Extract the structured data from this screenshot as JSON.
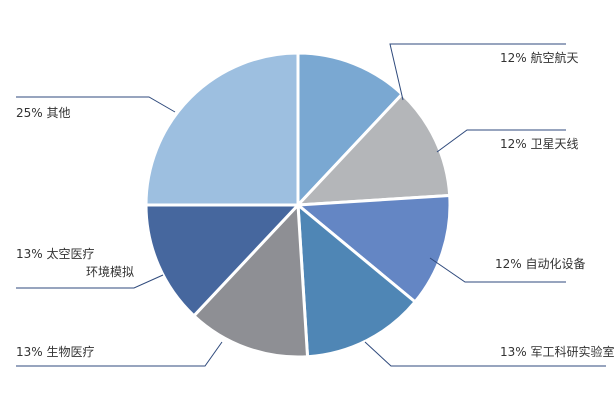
{
  "chart_data": {
    "type": "pie",
    "title": "",
    "unit": "%",
    "slices": [
      {
        "label_lines": [
          "12% 航空航天"
        ],
        "value": 12,
        "color": "#7aa8d2"
      },
      {
        "label_lines": [
          "12% 卫星天线"
        ],
        "value": 12,
        "color": "#b4b6b9"
      },
      {
        "label_lines": [
          "12% 自动化设备"
        ],
        "value": 12,
        "color": "#6486c4"
      },
      {
        "label_lines": [
          "13% 军工科研实验室"
        ],
        "value": 13,
        "color": "#4f86b5"
      },
      {
        "label_lines": [
          "13% 生物医疗"
        ],
        "value": 13,
        "color": "#8e8f94"
      },
      {
        "label_lines": [
          "13% 太空医疗",
          "环境模拟"
        ],
        "value": 13,
        "color": "#46679e"
      },
      {
        "label_lines": [
          "25% 其他"
        ],
        "value": 25,
        "color": "#9dbfe0"
      }
    ],
    "legend": "none",
    "start": "top",
    "direction": "clockwise"
  }
}
